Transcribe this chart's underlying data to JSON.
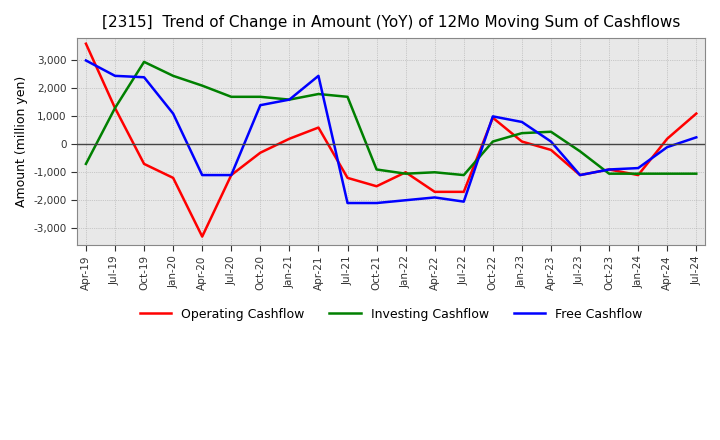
{
  "title": "[2315]  Trend of Change in Amount (YoY) of 12Mo Moving Sum of Cashflows",
  "ylabel": "Amount (million yen)",
  "ylim": [
    -3600,
    3800
  ],
  "yticks": [
    -3000,
    -2000,
    -1000,
    0,
    1000,
    2000,
    3000
  ],
  "x_labels": [
    "Apr-19",
    "Jul-19",
    "Oct-19",
    "Jan-20",
    "Apr-20",
    "Jul-20",
    "Oct-20",
    "Jan-21",
    "Apr-21",
    "Jul-21",
    "Oct-21",
    "Jan-22",
    "Apr-22",
    "Jul-22",
    "Oct-22",
    "Jan-23",
    "Apr-23",
    "Jul-23",
    "Oct-23",
    "Jan-24",
    "Apr-24",
    "Jul-24"
  ],
  "operating": [
    3600,
    1300,
    -700,
    -1200,
    -3300,
    -1100,
    -300,
    200,
    600,
    -1200,
    -1500,
    -1000,
    -1700,
    -1700,
    950,
    100,
    -200,
    -1100,
    -900,
    -1100,
    200,
    1100
  ],
  "investing": [
    -700,
    1300,
    2950,
    2450,
    2100,
    1700,
    1700,
    1600,
    1800,
    1700,
    -900,
    -1050,
    -1000,
    -1100,
    100,
    400,
    450,
    -250,
    -1050,
    -1050,
    -1050,
    -1050
  ],
  "free": [
    3000,
    2450,
    2400,
    1100,
    -1100,
    -1100,
    1400,
    1600,
    2450,
    -2100,
    -2100,
    -2000,
    -1900,
    -2050,
    1000,
    800,
    100,
    -1100,
    -900,
    -850,
    -100,
    250
  ],
  "colors": {
    "operating": "#ff0000",
    "investing": "#008000",
    "free": "#0000ff"
  },
  "background_color": "#ffffff",
  "plot_bg_color": "#e8e8e8",
  "grid_color": "#999999",
  "title_fontsize": 11,
  "legend_labels": [
    "Operating Cashflow",
    "Investing Cashflow",
    "Free Cashflow"
  ]
}
